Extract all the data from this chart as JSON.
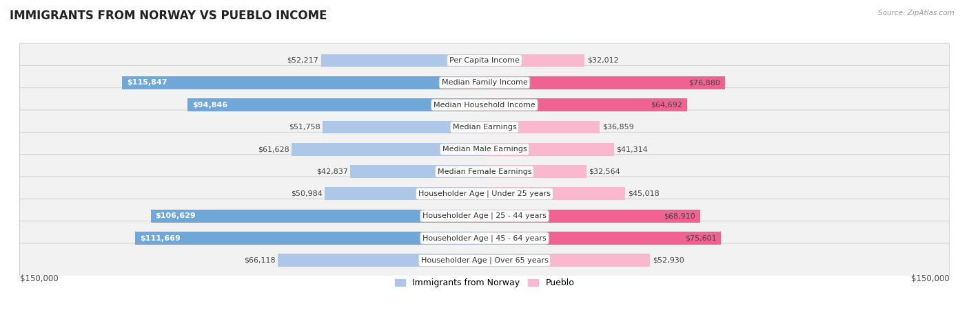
{
  "title": "IMMIGRANTS FROM NORWAY VS PUEBLO INCOME",
  "source": "Source: ZipAtlas.com",
  "categories": [
    "Per Capita Income",
    "Median Family Income",
    "Median Household Income",
    "Median Earnings",
    "Median Male Earnings",
    "Median Female Earnings",
    "Householder Age | Under 25 years",
    "Householder Age | 25 - 44 years",
    "Householder Age | 45 - 64 years",
    "Householder Age | Over 65 years"
  ],
  "norway_values": [
    52217,
    115847,
    94846,
    51758,
    61628,
    42837,
    50984,
    106629,
    111669,
    66118
  ],
  "pueblo_values": [
    32012,
    76880,
    64692,
    36859,
    41314,
    32564,
    45018,
    68910,
    75601,
    52930
  ],
  "norway_labels": [
    "$52,217",
    "$115,847",
    "$94,846",
    "$51,758",
    "$61,628",
    "$42,837",
    "$50,984",
    "$106,629",
    "$111,669",
    "$66,118"
  ],
  "pueblo_labels": [
    "$32,012",
    "$76,880",
    "$64,692",
    "$36,859",
    "$41,314",
    "$32,564",
    "$45,018",
    "$68,910",
    "$75,601",
    "$52,930"
  ],
  "norway_label_inside": [
    false,
    true,
    true,
    false,
    false,
    false,
    false,
    true,
    true,
    false
  ],
  "pueblo_label_inside": [
    false,
    true,
    true,
    false,
    false,
    false,
    false,
    true,
    true,
    false
  ],
  "norway_color_light": "#aec6e8",
  "norway_color_dark": "#6fa8d8",
  "pueblo_color_light": "#f9b8ce",
  "pueblo_color_dark": "#f06292",
  "max_value": 150000,
  "background_color": "#ffffff",
  "row_bg": "#f2f2f2",
  "row_border": "#d0d0d0",
  "title_fontsize": 12,
  "bar_label_fontsize": 8,
  "cat_label_fontsize": 8,
  "legend_norway": "Immigrants from Norway",
  "legend_pueblo": "Pueblo",
  "axis_label": "$150,000"
}
